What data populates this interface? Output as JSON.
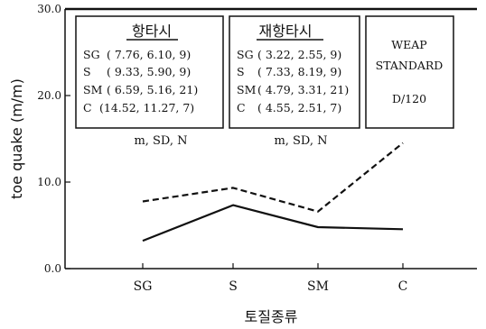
{
  "chart_data": {
    "type": "line",
    "categories": [
      "SG",
      "S",
      "SM",
      "C"
    ],
    "series": [
      {
        "style": "solid",
        "values": [
          3.22,
          7.33,
          4.79,
          4.55
        ]
      },
      {
        "style": "dashed",
        "values": [
          7.76,
          9.33,
          6.59,
          14.52
        ]
      }
    ],
    "xlabel": "토질종류",
    "ylabel": "toe quake (m/m)",
    "ylim": [
      0,
      30
    ],
    "yticks": [
      "0.0",
      "10.0",
      "20.0",
      "30.0"
    ],
    "legend_boxes": [
      {
        "title": "항타시",
        "rows": [
          {
            "label": "SG",
            "values": "( 7.76, 6.10, 9)"
          },
          {
            "label": "S",
            "values": "( 9.33, 5.90, 9)"
          },
          {
            "label": "SM",
            "values": "( 6.59, 5.16, 21)"
          },
          {
            "label": "C",
            "values": "(14.52, 11.27, 7)"
          }
        ],
        "footer": "m,  SD,  N"
      },
      {
        "title": "재항타시",
        "rows": [
          {
            "label": "SG",
            "values": "( 3.22, 2.55, 9)"
          },
          {
            "label": "S",
            "values": "( 7.33, 8.19, 9)"
          },
          {
            "label": "SM",
            "values": "( 4.79, 3.31, 21)"
          },
          {
            "label": "C",
            "values": "( 4.55, 2.51, 7)"
          }
        ],
        "footer": "m,  SD,  N"
      }
    ],
    "standard_box": {
      "line1": "WEAP",
      "line2": "STANDARD",
      "line3": "D/120"
    }
  }
}
